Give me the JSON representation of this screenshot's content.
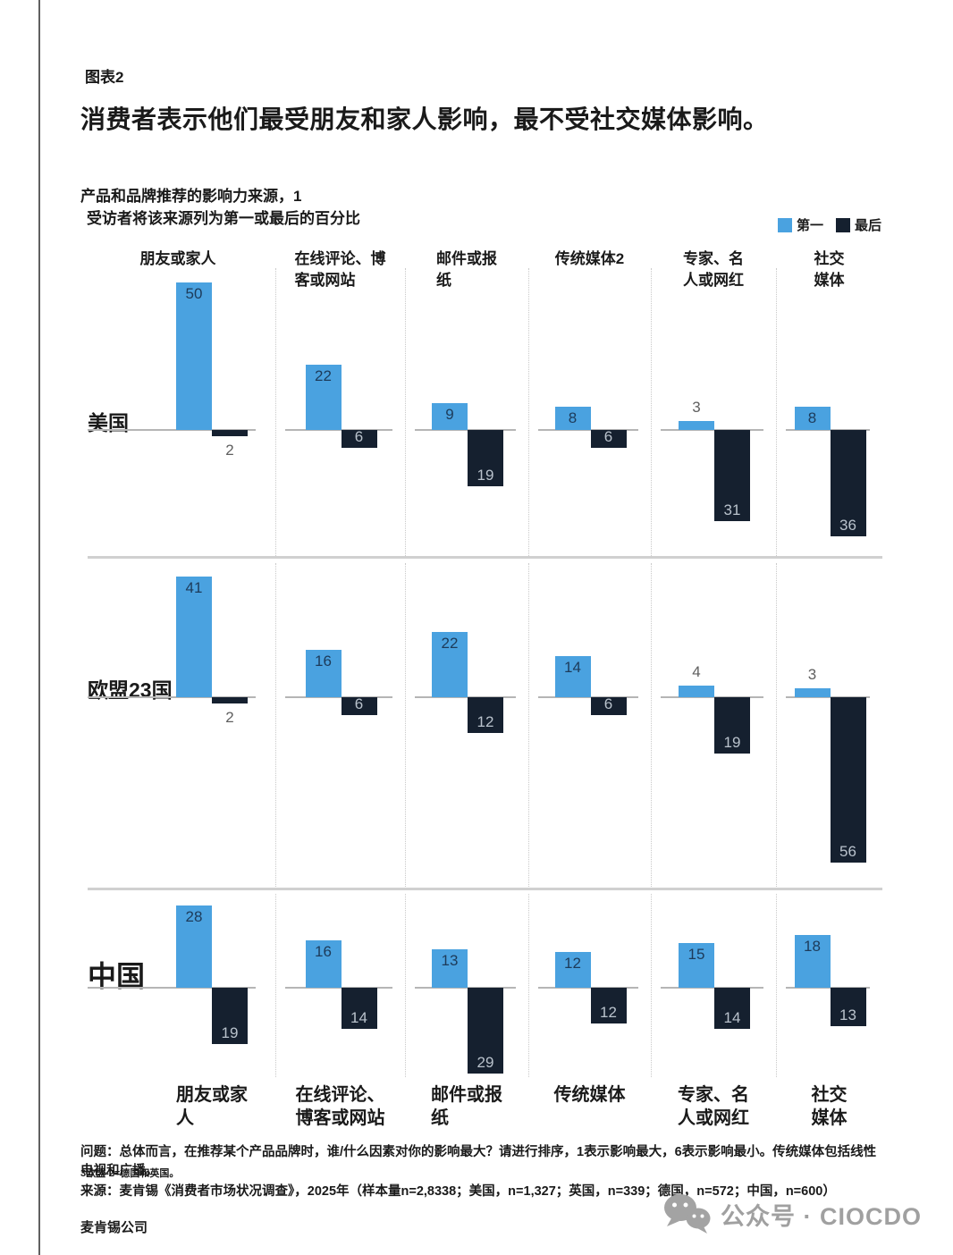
{
  "page": {
    "figure_label": "图表2",
    "title": "消费者表示他们最受朋友和家人影响，最不受社交媒体影响。",
    "subtitle_line1": "产品和品牌推荐的影响力来源，1",
    "subtitle_line2": "受访者将该来源列为第一或最后的百分比",
    "legend": {
      "first_label": "第一",
      "last_label": "最后"
    },
    "colors": {
      "first_bar": "#4AA2E0",
      "last_bar": "#15202F",
      "value_inside_first": "#1d3b5a",
      "value_inside_last": "#b9c2cc",
      "value_outside": "#5f5f5f",
      "axis_line": "#b5b5b5"
    },
    "footnote_question": "问题：总体而言，在推荐某个产品品牌时，谁/什么因素对你的影响最大？请进行排序，1表示影响最大，6表示影响最小。传统媒体包括线性电视和广播。",
    "footnote_small": "3欧盟-2=德国和英国。",
    "footnote_source": "来源：麦肯锡《消费者市场状况调查》，2025年（样本量n=2,8338；美国，n=1,327；英国，n=339；德国，n=572；中国，n=600）",
    "company": "麦肯锡公司",
    "wechat_badge": "公众号 · CIOCDO"
  },
  "chart_data": {
    "type": "bar",
    "unit": "%",
    "title": "产品和品牌推荐的影响力来源",
    "subtitle": "受访者将该来源列为第一或最后的百分比",
    "legend_entries": [
      "第一",
      "最后"
    ],
    "column_headers_top": [
      "朋友或家人",
      "在线评论、博\n客或网站",
      "邮件或报\n纸",
      "传统媒体2",
      "专家、名\n人或网红",
      "社交\n媒体"
    ],
    "column_headers_bottom": [
      "朋友或家\n人",
      "在线评论、\n博客或网站",
      "邮件或报\n纸",
      "传统媒体",
      "专家、名\n人或网红",
      "社交\n媒体"
    ],
    "categories": [
      "朋友或家人",
      "在线评论、博客或网站",
      "邮件或报纸",
      "传统媒体",
      "专家、名人或网红",
      "社交媒体"
    ],
    "rows": [
      {
        "region": "美国",
        "first": [
          50,
          22,
          9,
          8,
          3,
          8
        ],
        "last": [
          2,
          6,
          19,
          6,
          31,
          36
        ]
      },
      {
        "region": "欧盟23国",
        "first": [
          41,
          16,
          22,
          14,
          4,
          3
        ],
        "last": [
          2,
          6,
          12,
          6,
          19,
          56
        ]
      },
      {
        "region": "中国",
        "first": [
          28,
          16,
          13,
          12,
          15,
          18
        ],
        "last": [
          19,
          14,
          29,
          12,
          14,
          13
        ]
      }
    ]
  }
}
